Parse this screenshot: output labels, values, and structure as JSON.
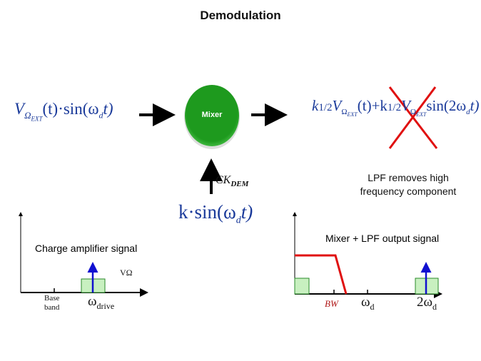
{
  "title": "Demodulation",
  "input_signal": {
    "main": "V",
    "sub": "Ω",
    "subsub": "EXT",
    "rest": "(t)·sin(ω",
    "sub2": "d",
    "end": "t)"
  },
  "mixer": {
    "label": "Mixer",
    "color": "#1e9a1e"
  },
  "output_signal": {
    "part1": "k",
    "frac": "1/2",
    "v": "V",
    "sub": "Ω",
    "subsub": "EXT",
    "mid": "(t)+k",
    "frac2": "1/2",
    "v2": "V",
    "sub2": "Ω",
    "subsub2": "EXT",
    "end": "sin(2ω",
    "sub3": "d",
    "end2": "t)",
    "cross_color": "#e01010"
  },
  "clock": {
    "label": "CK",
    "sub": "DEM",
    "signal": "k·sin(ω",
    "signal_sub": "d",
    "signal_end": "t)"
  },
  "lpf_note": [
    "LPF removes high",
    "frequency component"
  ],
  "left_graph": {
    "title": "Charge amplifier signal",
    "amplitude_label": "VΩ",
    "tick_labels": [
      "Base",
      "band"
    ],
    "drive_label": "ω",
    "drive_sub": "drive"
  },
  "right_graph": {
    "title": "Mixer + LPF output signal",
    "bw_label": "BW",
    "wd_label": "ω",
    "wd_sub": "d",
    "w2d_label": "2ω",
    "w2d_sub": "d",
    "filter_color": "#e01010"
  },
  "colors": {
    "box_fill": "#c8f0c0",
    "box_stroke": "#2a8a2a",
    "arrow": "#1010d0",
    "equation": "#1a3a9a"
  }
}
